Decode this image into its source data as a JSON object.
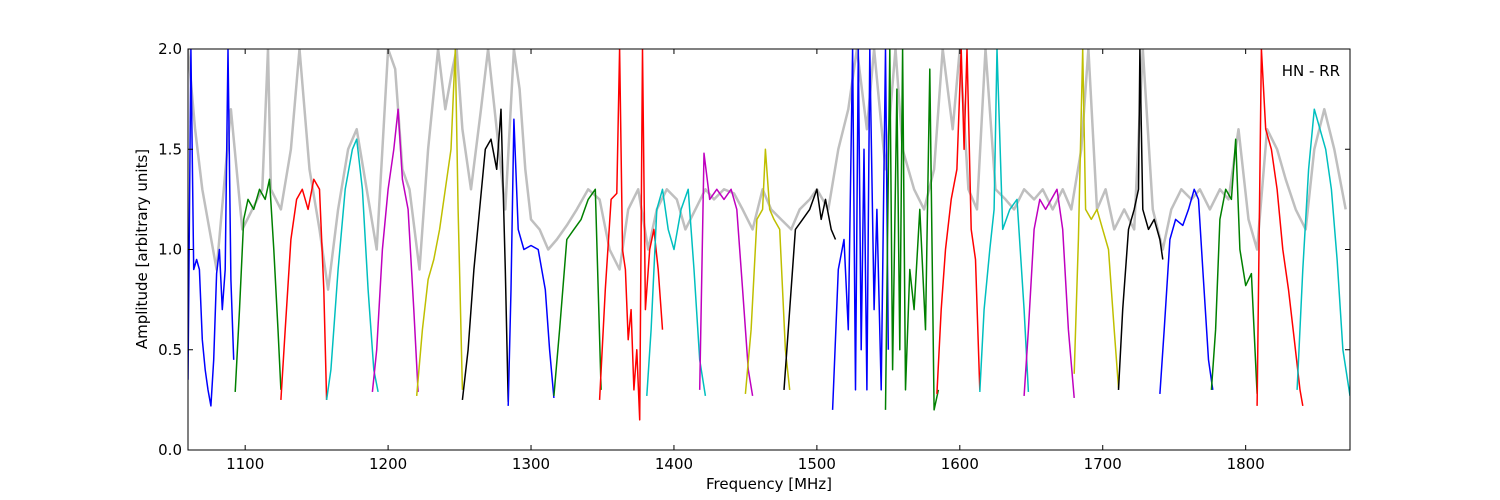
{
  "chart_data": {
    "type": "line",
    "xlabel": "Frequency [MHz]",
    "ylabel": "Amplitude [arbitrary units]",
    "annotation": "HN - RR",
    "xlim": [
      1060,
      1873
    ],
    "ylim": [
      0.0,
      2.0
    ],
    "xticks": [
      1100,
      1200,
      1300,
      1400,
      1500,
      1600,
      1700,
      1800
    ],
    "xtick_labels": [
      "1100",
      "1200",
      "1300",
      "1400",
      "1500",
      "1600",
      "1700",
      "1800"
    ],
    "yticks": [
      0.0,
      0.5,
      1.0,
      1.5,
      2.0
    ],
    "ytick_labels": [
      "0.0",
      "0.5",
      "1.0",
      "1.5",
      "2.0"
    ],
    "grid": false,
    "colors": {
      "background_series": "#bfbfbf",
      "b": "#0000ff",
      "g": "#008000",
      "r": "#ff0000",
      "c": "#00bfbf",
      "m": "#bf00bf",
      "y": "#bfbf00",
      "k": "#000000"
    },
    "background_series": {
      "description_color": "gray",
      "x": [
        1060,
        1065,
        1070,
        1080,
        1090,
        1098,
        1105,
        1112,
        1116,
        1118,
        1125,
        1132,
        1138,
        1145,
        1152,
        1158,
        1165,
        1172,
        1178,
        1185,
        1192,
        1200,
        1205,
        1210,
        1215,
        1222,
        1228,
        1235,
        1240,
        1245,
        1248,
        1252,
        1258,
        1265,
        1270,
        1276,
        1282,
        1288,
        1292,
        1296,
        1300,
        1306,
        1312,
        1318,
        1325,
        1332,
        1340,
        1348,
        1355,
        1362,
        1368,
        1375,
        1382,
        1388,
        1395,
        1402,
        1408,
        1415,
        1422,
        1428,
        1435,
        1442,
        1448,
        1455,
        1462,
        1468,
        1475,
        1482,
        1488,
        1495,
        1500,
        1508,
        1515,
        1522,
        1528,
        1535,
        1540,
        1548,
        1555,
        1560,
        1568,
        1575,
        1582,
        1588,
        1595,
        1600,
        1606,
        1612,
        1618,
        1625,
        1632,
        1638,
        1645,
        1652,
        1658,
        1665,
        1672,
        1678,
        1685,
        1690,
        1696,
        1702,
        1708,
        1715,
        1722,
        1728,
        1735,
        1742,
        1748,
        1755,
        1762,
        1768,
        1775,
        1782,
        1788,
        1795,
        1802,
        1808,
        1815,
        1822,
        1828,
        1835,
        1842,
        1848,
        1855,
        1862,
        1870
      ],
      "y": [
        2.0,
        1.6,
        1.3,
        0.9,
        1.7,
        1.1,
        1.2,
        1.3,
        2.0,
        1.3,
        1.2,
        1.5,
        2.0,
        1.4,
        1.1,
        0.8,
        1.2,
        1.5,
        1.6,
        1.3,
        1.0,
        2.0,
        1.9,
        1.4,
        1.3,
        0.9,
        1.5,
        2.0,
        1.7,
        1.9,
        2.0,
        1.6,
        1.3,
        1.7,
        2.0,
        1.6,
        1.2,
        2.0,
        1.8,
        1.4,
        1.15,
        1.1,
        1.0,
        1.05,
        1.12,
        1.2,
        1.3,
        1.25,
        1.0,
        0.9,
        1.2,
        1.3,
        1.0,
        1.2,
        1.3,
        1.25,
        1.1,
        1.2,
        1.3,
        1.25,
        1.3,
        1.28,
        1.2,
        1.1,
        1.3,
        1.2,
        1.15,
        1.1,
        1.2,
        1.25,
        1.3,
        1.2,
        1.5,
        1.7,
        2.0,
        1.6,
        2.0,
        1.4,
        2.0,
        1.5,
        1.3,
        1.2,
        1.4,
        2.0,
        1.6,
        2.0,
        1.3,
        1.2,
        2.0,
        1.3,
        1.25,
        1.2,
        1.3,
        1.25,
        1.3,
        1.2,
        1.3,
        1.2,
        1.5,
        2.0,
        1.2,
        1.3,
        1.1,
        1.2,
        1.1,
        2.0,
        1.2,
        1.0,
        1.2,
        1.3,
        1.25,
        1.3,
        1.2,
        1.3,
        1.25,
        1.6,
        1.15,
        1.0,
        1.6,
        1.5,
        1.35,
        1.2,
        1.1,
        1.5,
        1.7,
        1.5,
        1.2
      ]
    },
    "series": [
      {
        "color_key": "b",
        "x": [
          1060,
          1062,
          1064,
          1066,
          1068,
          1070,
          1072,
          1074,
          1076,
          1078,
          1080,
          1082,
          1084,
          1086,
          1088,
          1090,
          1092
        ],
        "y": [
          0.35,
          2.0,
          0.9,
          0.95,
          0.9,
          0.55,
          0.4,
          0.3,
          0.22,
          0.45,
          0.88,
          1.0,
          0.7,
          0.9,
          2.0,
          0.85,
          0.45
        ]
      },
      {
        "color_key": "g",
        "x": [
          1093,
          1096,
          1099,
          1102,
          1106,
          1110,
          1114,
          1117,
          1120,
          1123,
          1125
        ],
        "y": [
          0.29,
          0.7,
          1.15,
          1.25,
          1.2,
          1.3,
          1.25,
          1.35,
          1.0,
          0.6,
          0.3
        ]
      },
      {
        "color_key": "r",
        "x": [
          1125,
          1128,
          1132,
          1136,
          1140,
          1144,
          1148,
          1152,
          1155,
          1157
        ],
        "y": [
          0.25,
          0.6,
          1.05,
          1.25,
          1.3,
          1.2,
          1.35,
          1.3,
          0.8,
          0.25
        ]
      },
      {
        "color_key": "c",
        "x": [
          1157,
          1160,
          1165,
          1170,
          1175,
          1178,
          1182,
          1186,
          1190,
          1193
        ],
        "y": [
          0.25,
          0.4,
          0.9,
          1.3,
          1.5,
          1.55,
          1.3,
          0.8,
          0.4,
          0.29
        ]
      },
      {
        "color_key": "m",
        "x": [
          1189,
          1192,
          1196,
          1200,
          1204,
          1207,
          1210,
          1214,
          1218,
          1221
        ],
        "y": [
          0.29,
          0.5,
          1.0,
          1.3,
          1.5,
          1.7,
          1.35,
          1.2,
          0.7,
          0.29
        ]
      },
      {
        "color_key": "y",
        "x": [
          1220,
          1224,
          1228,
          1232,
          1236,
          1240,
          1244,
          1247,
          1249,
          1252
        ],
        "y": [
          0.27,
          0.6,
          0.85,
          0.95,
          1.1,
          1.3,
          1.5,
          2.0,
          1.2,
          0.3
        ]
      },
      {
        "color_key": "k",
        "x": [
          1252,
          1256,
          1260,
          1264,
          1268,
          1272,
          1276,
          1279,
          1282,
          1284
        ],
        "y": [
          0.25,
          0.5,
          0.9,
          1.2,
          1.5,
          1.55,
          1.4,
          1.7,
          0.9,
          0.24
        ]
      },
      {
        "color_key": "b",
        "x": [
          1284,
          1286,
          1288,
          1291,
          1295,
          1300,
          1305,
          1310,
          1313,
          1316
        ],
        "y": [
          0.22,
          0.8,
          1.65,
          1.1,
          1.0,
          1.02,
          1.0,
          0.8,
          0.5,
          0.26
        ]
      },
      {
        "color_key": "g",
        "x": [
          1316,
          1320,
          1325,
          1330,
          1335,
          1340,
          1345,
          1349
        ],
        "y": [
          0.27,
          0.6,
          1.05,
          1.1,
          1.15,
          1.25,
          1.3,
          0.3
        ]
      },
      {
        "color_key": "r",
        "x": [
          1348,
          1352,
          1356,
          1360,
          1362,
          1364,
          1366,
          1368,
          1370,
          1372,
          1374,
          1376,
          1378,
          1380,
          1383,
          1386,
          1389,
          1392
        ],
        "y": [
          0.25,
          0.8,
          1.25,
          1.28,
          2.0,
          1.0,
          0.9,
          0.55,
          0.7,
          0.3,
          0.5,
          0.15,
          2.0,
          0.7,
          1.0,
          1.1,
          0.9,
          0.6
        ]
      },
      {
        "color_key": "c",
        "x": [
          1381,
          1384,
          1388,
          1392,
          1396,
          1400,
          1405,
          1410,
          1414,
          1418,
          1422
        ],
        "y": [
          0.27,
          0.6,
          1.2,
          1.3,
          1.1,
          1.0,
          1.2,
          1.3,
          0.9,
          0.45,
          0.27
        ]
      },
      {
        "color_key": "m",
        "x": [
          1418,
          1421,
          1425,
          1430,
          1435,
          1440,
          1444,
          1448,
          1452,
          1455
        ],
        "y": [
          0.3,
          1.48,
          1.25,
          1.3,
          1.25,
          1.3,
          1.2,
          0.8,
          0.4,
          0.27
        ]
      },
      {
        "color_key": "y",
        "x": [
          1450,
          1454,
          1458,
          1462,
          1464,
          1467,
          1470,
          1474,
          1478,
          1481
        ],
        "y": [
          0.28,
          0.6,
          1.15,
          1.2,
          1.5,
          1.2,
          1.15,
          1.1,
          0.5,
          0.3
        ]
      },
      {
        "color_key": "k",
        "x": [
          1477,
          1481,
          1485,
          1490,
          1495,
          1500,
          1503,
          1506,
          1510,
          1513
        ],
        "y": [
          0.3,
          0.7,
          1.1,
          1.15,
          1.2,
          1.3,
          1.15,
          1.25,
          1.1,
          1.05
        ]
      },
      {
        "color_key": "b",
        "x": [
          1511,
          1515,
          1519,
          1522,
          1525,
          1527,
          1529,
          1531,
          1533,
          1535,
          1537,
          1540,
          1542,
          1545,
          1548,
          1550
        ],
        "y": [
          0.2,
          0.9,
          1.05,
          0.6,
          2.0,
          0.3,
          2.0,
          0.5,
          1.5,
          0.3,
          2.0,
          0.7,
          1.2,
          0.3,
          2.0,
          0.5
        ]
      },
      {
        "color_key": "g",
        "x": [
          1548,
          1551,
          1553,
          1556,
          1558,
          1560,
          1562,
          1565,
          1568,
          1572,
          1576,
          1579,
          1582,
          1585
        ],
        "y": [
          0.2,
          2.0,
          0.4,
          1.8,
          0.5,
          2.0,
          0.3,
          0.9,
          0.7,
          1.2,
          0.6,
          1.9,
          0.2,
          0.3
        ]
      },
      {
        "color_key": "r",
        "x": [
          1584,
          1587,
          1590,
          1594,
          1598,
          1601,
          1603,
          1605,
          1608,
          1611,
          1614
        ],
        "y": [
          0.28,
          0.7,
          1.0,
          1.25,
          1.4,
          2.0,
          1.5,
          2.0,
          1.1,
          0.95,
          0.3
        ]
      },
      {
        "color_key": "c",
        "x": [
          1614,
          1617,
          1621,
          1624,
          1626,
          1630,
          1635,
          1640,
          1645,
          1648
        ],
        "y": [
          0.29,
          0.7,
          1.0,
          1.2,
          2.0,
          1.1,
          1.2,
          1.25,
          0.7,
          0.29
        ]
      },
      {
        "color_key": "m",
        "x": [
          1645,
          1648,
          1652,
          1656,
          1660,
          1664,
          1668,
          1672,
          1676,
          1680
        ],
        "y": [
          0.27,
          0.6,
          1.1,
          1.25,
          1.2,
          1.25,
          1.3,
          1.1,
          0.6,
          0.26
        ]
      },
      {
        "color_key": "y",
        "x": [
          1680,
          1683,
          1686,
          1688,
          1692,
          1696,
          1700,
          1704,
          1708,
          1711
        ],
        "y": [
          0.38,
          1.05,
          2.0,
          1.2,
          1.15,
          1.2,
          1.1,
          1.0,
          0.6,
          0.31
        ]
      },
      {
        "color_key": "k",
        "x": [
          1711,
          1714,
          1718,
          1722,
          1725,
          1726,
          1728,
          1732,
          1736,
          1740,
          1742
        ],
        "y": [
          0.3,
          0.7,
          1.1,
          1.2,
          1.3,
          2.0,
          1.2,
          1.1,
          1.15,
          1.05,
          0.95
        ]
      },
      {
        "color_key": "b",
        "x": [
          1740,
          1743,
          1747,
          1751,
          1756,
          1760,
          1764,
          1767,
          1770,
          1774,
          1777
        ],
        "y": [
          0.28,
          0.6,
          1.05,
          1.15,
          1.12,
          1.2,
          1.3,
          1.25,
          0.9,
          0.45,
          0.3
        ]
      },
      {
        "color_key": "g",
        "x": [
          1776,
          1779,
          1782,
          1786,
          1790,
          1793,
          1796,
          1800,
          1804,
          1808
        ],
        "y": [
          0.3,
          0.6,
          1.15,
          1.3,
          1.25,
          1.55,
          1.0,
          0.82,
          0.88,
          0.28
        ]
      },
      {
        "color_key": "r",
        "x": [
          1808,
          1811,
          1814,
          1818,
          1822,
          1826,
          1830,
          1834,
          1838,
          1840
        ],
        "y": [
          0.22,
          2.0,
          1.6,
          1.5,
          1.3,
          1.0,
          0.8,
          0.55,
          0.3,
          0.22
        ]
      },
      {
        "color_key": "c",
        "x": [
          1836,
          1840,
          1844,
          1848,
          1852,
          1856,
          1860,
          1864,
          1868,
          1873
        ],
        "y": [
          0.3,
          0.9,
          1.4,
          1.7,
          1.6,
          1.5,
          1.3,
          0.95,
          0.5,
          0.27
        ]
      }
    ]
  }
}
